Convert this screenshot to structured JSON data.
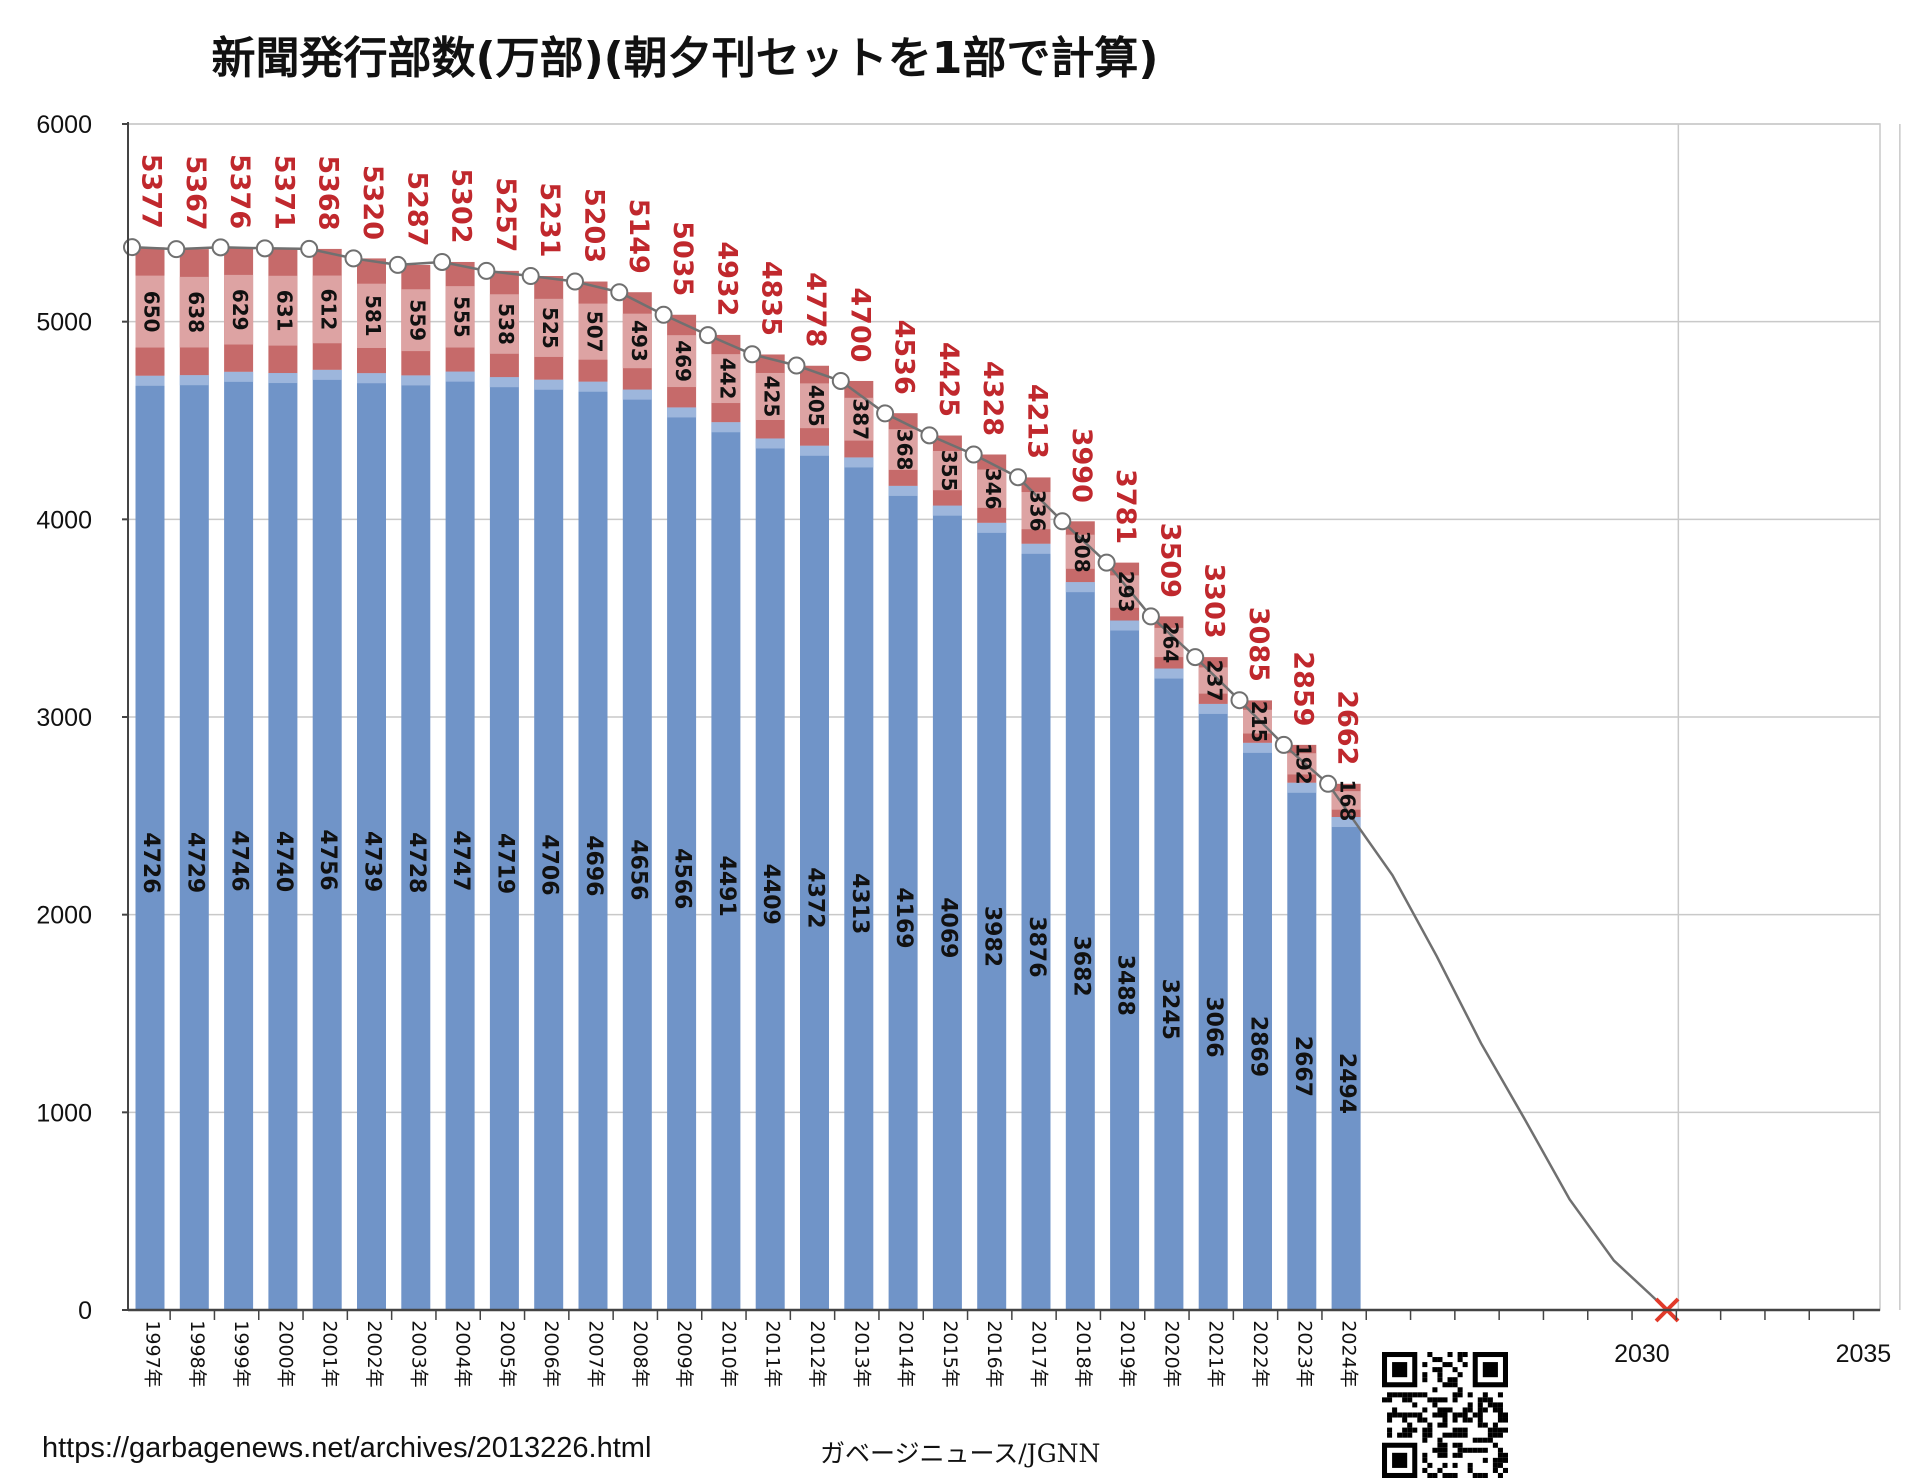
{
  "source_url": "https://garbagenews.net/archives/2013226.html",
  "source_credit": "ガベージニュース/JGNN",
  "colors": {
    "morning": "#7094c8",
    "morning_light": "#9db6dc",
    "evening": "#c66a6a",
    "evening_light": "#dda3a3",
    "total_label": "#c0282d",
    "trend": "#707070",
    "cross": "#e23a2a",
    "grid": "#c9c9c9"
  },
  "chart_data": {
    "type": "bar",
    "title": "新聞発行部数(万部)(朝夕刊セットを1部で計算)",
    "xlabel": "",
    "ylabel": "",
    "ylim": [
      0,
      6000
    ],
    "yticks": [
      "0",
      "1000",
      "2000",
      "3000",
      "4000",
      "5000",
      "6000"
    ],
    "grid": true,
    "categories": [
      "1997年",
      "1998年",
      "1999年",
      "2000年",
      "2001年",
      "2002年",
      "2003年",
      "2004年",
      "2005年",
      "2006年",
      "2007年",
      "2008年",
      "2009年",
      "2010年",
      "2011年",
      "2012年",
      "2013年",
      "2014年",
      "2015年",
      "2016年",
      "2017年",
      "2018年",
      "2019年",
      "2020年",
      "2021年",
      "2022年",
      "2023年",
      "2024年"
    ],
    "series": [
      {
        "values": [
          4726,
          4729,
          4746,
          4740,
          4756,
          4739,
          4728,
          4747,
          4719,
          4706,
          4696,
          4656,
          4566,
          4491,
          4409,
          4372,
          4313,
          4169,
          4069,
          3982,
          3876,
          3682,
          3488,
          3245,
          3066,
          2869,
          2667,
          2494
        ]
      },
      {
        "values": [
          650,
          638,
          629,
          631,
          612,
          581,
          559,
          555,
          538,
          525,
          507,
          493,
          469,
          442,
          425,
          405,
          387,
          368,
          355,
          346,
          336,
          308,
          293,
          264,
          237,
          215,
          192,
          168
        ]
      }
    ],
    "totals": [
      5377,
      5367,
      5376,
      5371,
      5368,
      5320,
      5287,
      5302,
      5257,
      5231,
      5203,
      5149,
      5035,
      4932,
      4835,
      4778,
      4700,
      4536,
      4425,
      4328,
      4213,
      3990,
      3781,
      3509,
      3303,
      3085,
      2859,
      2662
    ],
    "projection": {
      "x": [
        2025,
        2026,
        2027,
        2028,
        2029,
        2030,
        2031.2
      ],
      "y": [
        2200,
        1790,
        1350,
        960,
        560,
        250,
        0
      ]
    },
    "extra_xticks": [
      "2030",
      "2035"
    ],
    "zero_crossing": {
      "x": 2031.2,
      "y": 0
    }
  }
}
